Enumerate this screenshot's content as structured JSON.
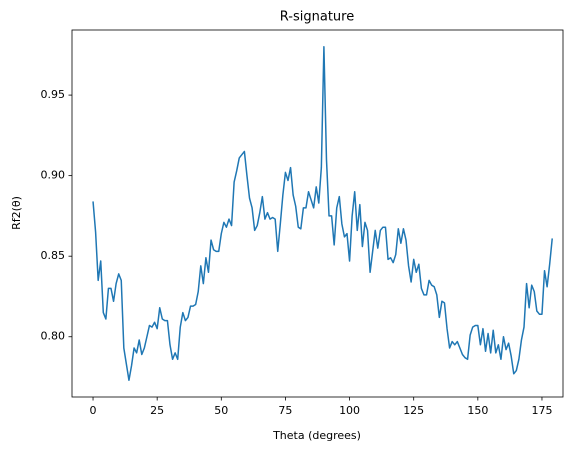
{
  "chart_data": {
    "type": "line",
    "title": "R-signature",
    "x_label": "Theta (degrees)",
    "y_label": "Rf2(θ)",
    "x": [
      0,
      1,
      2,
      3,
      4,
      5,
      6,
      7,
      8,
      9,
      10,
      11,
      12,
      13,
      14,
      15,
      16,
      17,
      18,
      19,
      20,
      21,
      22,
      23,
      24,
      25,
      26,
      27,
      28,
      29,
      30,
      31,
      32,
      33,
      34,
      35,
      36,
      37,
      38,
      39,
      40,
      41,
      42,
      43,
      44,
      45,
      46,
      47,
      48,
      49,
      50,
      51,
      52,
      53,
      54,
      55,
      56,
      57,
      58,
      59,
      60,
      61,
      62,
      63,
      64,
      65,
      66,
      67,
      68,
      69,
      70,
      71,
      72,
      73,
      74,
      75,
      76,
      77,
      78,
      79,
      80,
      81,
      82,
      83,
      84,
      85,
      86,
      87,
      88,
      89,
      90,
      91,
      92,
      93,
      94,
      95,
      96,
      97,
      98,
      99,
      100,
      101,
      102,
      103,
      104,
      105,
      106,
      107,
      108,
      109,
      110,
      111,
      112,
      113,
      114,
      115,
      116,
      117,
      118,
      119,
      120,
      121,
      122,
      123,
      124,
      125,
      126,
      127,
      128,
      129,
      130,
      131,
      132,
      133,
      134,
      135,
      136,
      137,
      138,
      139,
      140,
      141,
      142,
      143,
      144,
      145,
      146,
      147,
      148,
      149,
      150,
      151,
      152,
      153,
      154,
      155,
      156,
      157,
      158,
      159,
      160,
      161,
      162,
      163,
      164,
      165,
      166,
      167,
      168,
      169,
      170,
      171,
      172,
      173,
      174,
      175,
      176,
      177,
      178,
      179
    ],
    "series": [
      {
        "name": "Rf2",
        "color": "#1f77b4",
        "values": [
          0.884,
          0.865,
          0.835,
          0.847,
          0.815,
          0.811,
          0.83,
          0.83,
          0.822,
          0.833,
          0.839,
          0.835,
          0.793,
          0.783,
          0.773,
          0.782,
          0.793,
          0.79,
          0.798,
          0.789,
          0.793,
          0.8,
          0.807,
          0.806,
          0.809,
          0.805,
          0.818,
          0.811,
          0.81,
          0.81,
          0.795,
          0.786,
          0.79,
          0.786,
          0.806,
          0.815,
          0.81,
          0.812,
          0.819,
          0.819,
          0.82,
          0.828,
          0.844,
          0.833,
          0.849,
          0.84,
          0.86,
          0.854,
          0.853,
          0.853,
          0.864,
          0.871,
          0.868,
          0.873,
          0.869,
          0.896,
          0.903,
          0.911,
          0.913,
          0.915,
          0.9,
          0.886,
          0.88,
          0.866,
          0.869,
          0.877,
          0.887,
          0.873,
          0.877,
          0.873,
          0.874,
          0.873,
          0.853,
          0.87,
          0.888,
          0.902,
          0.897,
          0.905,
          0.888,
          0.881,
          0.868,
          0.867,
          0.88,
          0.88,
          0.89,
          0.885,
          0.88,
          0.893,
          0.883,
          0.905,
          0.98,
          0.91,
          0.875,
          0.875,
          0.857,
          0.88,
          0.887,
          0.87,
          0.862,
          0.864,
          0.847,
          0.875,
          0.89,
          0.866,
          0.882,
          0.856,
          0.871,
          0.866,
          0.84,
          0.853,
          0.866,
          0.855,
          0.866,
          0.868,
          0.868,
          0.848,
          0.849,
          0.846,
          0.851,
          0.867,
          0.858,
          0.867,
          0.86,
          0.844,
          0.834,
          0.848,
          0.84,
          0.845,
          0.83,
          0.826,
          0.826,
          0.835,
          0.832,
          0.831,
          0.826,
          0.812,
          0.822,
          0.821,
          0.805,
          0.793,
          0.797,
          0.795,
          0.797,
          0.793,
          0.789,
          0.787,
          0.786,
          0.801,
          0.806,
          0.807,
          0.807,
          0.795,
          0.805,
          0.791,
          0.802,
          0.79,
          0.804,
          0.79,
          0.795,
          0.786,
          0.8,
          0.792,
          0.796,
          0.788,
          0.777,
          0.779,
          0.786,
          0.798,
          0.806,
          0.833,
          0.818,
          0.832,
          0.828,
          0.816,
          0.814,
          0.814,
          0.841,
          0.831,
          0.845,
          0.861
        ]
      }
    ],
    "xlim": [
      -8.2,
      183.2
    ],
    "ylim": [
      0.7626,
      0.9904
    ],
    "xticks": [
      0,
      25,
      50,
      75,
      100,
      125,
      150,
      175
    ],
    "yticks": [
      {
        "value": 0.8,
        "label": "0.80"
      },
      0.85,
      {
        "value": 0.9,
        "label": "0.90"
      },
      0.95
    ]
  }
}
